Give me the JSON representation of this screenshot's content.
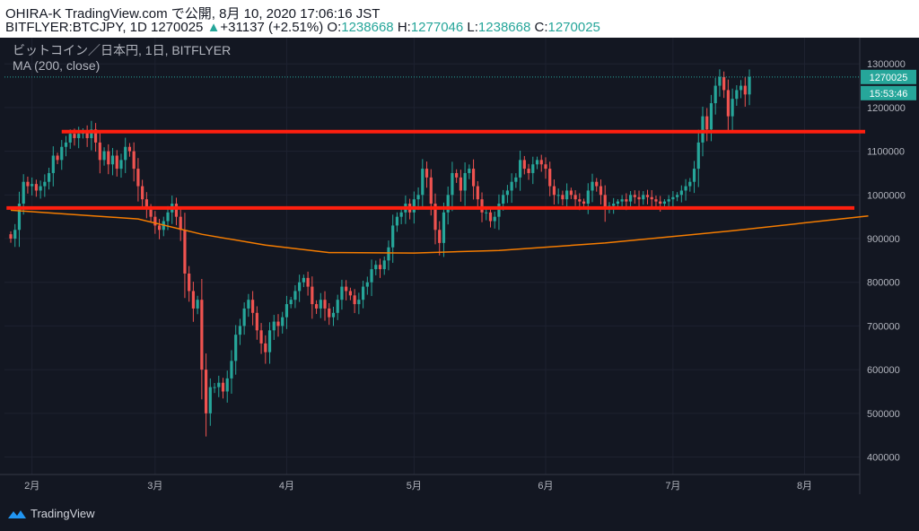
{
  "header": {
    "line1": "OHIRA-K TradingView.com で公開, 8月 10, 2020 17:06:16 JST",
    "symbol": "BITFLYER:BTCJPY, 1D 1270025",
    "change_arrow": "▲",
    "change": "+31137 (+2.51%)",
    "o_label": "O:",
    "o_value": "1238668",
    "h_label": "H:",
    "h_value": "1277046",
    "l_label": "L:",
    "l_value": "1238668",
    "c_label": "C:",
    "c_value": "1270025"
  },
  "legend": {
    "title": "ビットコイン／日本円, 1日, BITFLYER",
    "indicator": "MA (200, close)"
  },
  "footer": {
    "brand": "TradingView"
  },
  "colors": {
    "background": "#131722",
    "up": "#26a69a",
    "down": "#ef5350",
    "ma": "#f57c00",
    "hline": "#ff1f0f",
    "grid": "#1e2230"
  },
  "chart_data": {
    "type": "candlestick",
    "ylim": [
      360000,
      1360000
    ],
    "y_ticks": [
      400000,
      500000,
      600000,
      700000,
      800000,
      900000,
      1000000,
      1100000,
      1200000,
      1300000
    ],
    "x_ticks": [
      "2月",
      "3月",
      "4月",
      "5月",
      "6月",
      "7月",
      "8月"
    ],
    "x_tick_days": [
      5,
      34,
      65,
      95,
      126,
      156,
      187
    ],
    "last_price_label": "1270025",
    "countdown_label": "15:53:46",
    "horizontal_levels": [
      1145000,
      970000
    ],
    "ma200_knots": [
      [
        0,
        965000
      ],
      [
        30,
        945000
      ],
      [
        45,
        910000
      ],
      [
        60,
        885000
      ],
      [
        75,
        868000
      ],
      [
        95,
        867000
      ],
      [
        115,
        873000
      ],
      [
        140,
        890000
      ],
      [
        170,
        918000
      ],
      [
        202,
        952000
      ]
    ],
    "closes": [
      900000,
      920000,
      980000,
      1030000,
      1020000,
      1025000,
      1010000,
      1020000,
      1030000,
      1050000,
      1090000,
      1080000,
      1110000,
      1120000,
      1140000,
      1130000,
      1140000,
      1145000,
      1130000,
      1150000,
      1120000,
      1080000,
      1100000,
      1070000,
      1090000,
      1060000,
      1080000,
      1110000,
      1100000,
      1060000,
      1020000,
      990000,
      970000,
      950000,
      930000,
      920000,
      940000,
      960000,
      980000,
      950000,
      920000,
      820000,
      780000,
      740000,
      760000,
      600000,
      500000,
      560000,
      560000,
      570000,
      550000,
      580000,
      620000,
      680000,
      700000,
      740000,
      760000,
      730000,
      690000,
      660000,
      640000,
      690000,
      710000,
      700000,
      720000,
      750000,
      760000,
      780000,
      800000,
      810000,
      790000,
      750000,
      740000,
      760000,
      740000,
      720000,
      730000,
      760000,
      790000,
      780000,
      770000,
      750000,
      760000,
      790000,
      800000,
      830000,
      840000,
      830000,
      850000,
      880000,
      930000,
      950000,
      960000,
      980000,
      960000,
      990000,
      1000000,
      1060000,
      1040000,
      980000,
      920000,
      890000,
      960000,
      1000000,
      1050000,
      1040000,
      1010000,
      1050000,
      1060000,
      1020000,
      990000,
      960000,
      960000,
      940000,
      950000,
      980000,
      1000000,
      1010000,
      1030000,
      1040000,
      1080000,
      1060000,
      1050000,
      1070000,
      1080000,
      1070000,
      1060000,
      1020000,
      1000000,
      1000000,
      990000,
      1010000,
      1000000,
      990000,
      985000,
      980000,
      1010000,
      1030000,
      1020000,
      1000000,
      970000,
      975000,
      980000,
      985000,
      990000,
      985000,
      1000000,
      995000,
      990000,
      1000000,
      995000,
      990000,
      985000,
      980000,
      985000,
      990000,
      995000,
      1000000,
      1010000,
      1020000,
      1030000,
      1060000,
      1120000,
      1180000,
      1150000,
      1210000,
      1250000,
      1270000,
      1240000,
      1180000,
      1220000,
      1240000,
      1250000,
      1230000,
      1270025
    ]
  }
}
